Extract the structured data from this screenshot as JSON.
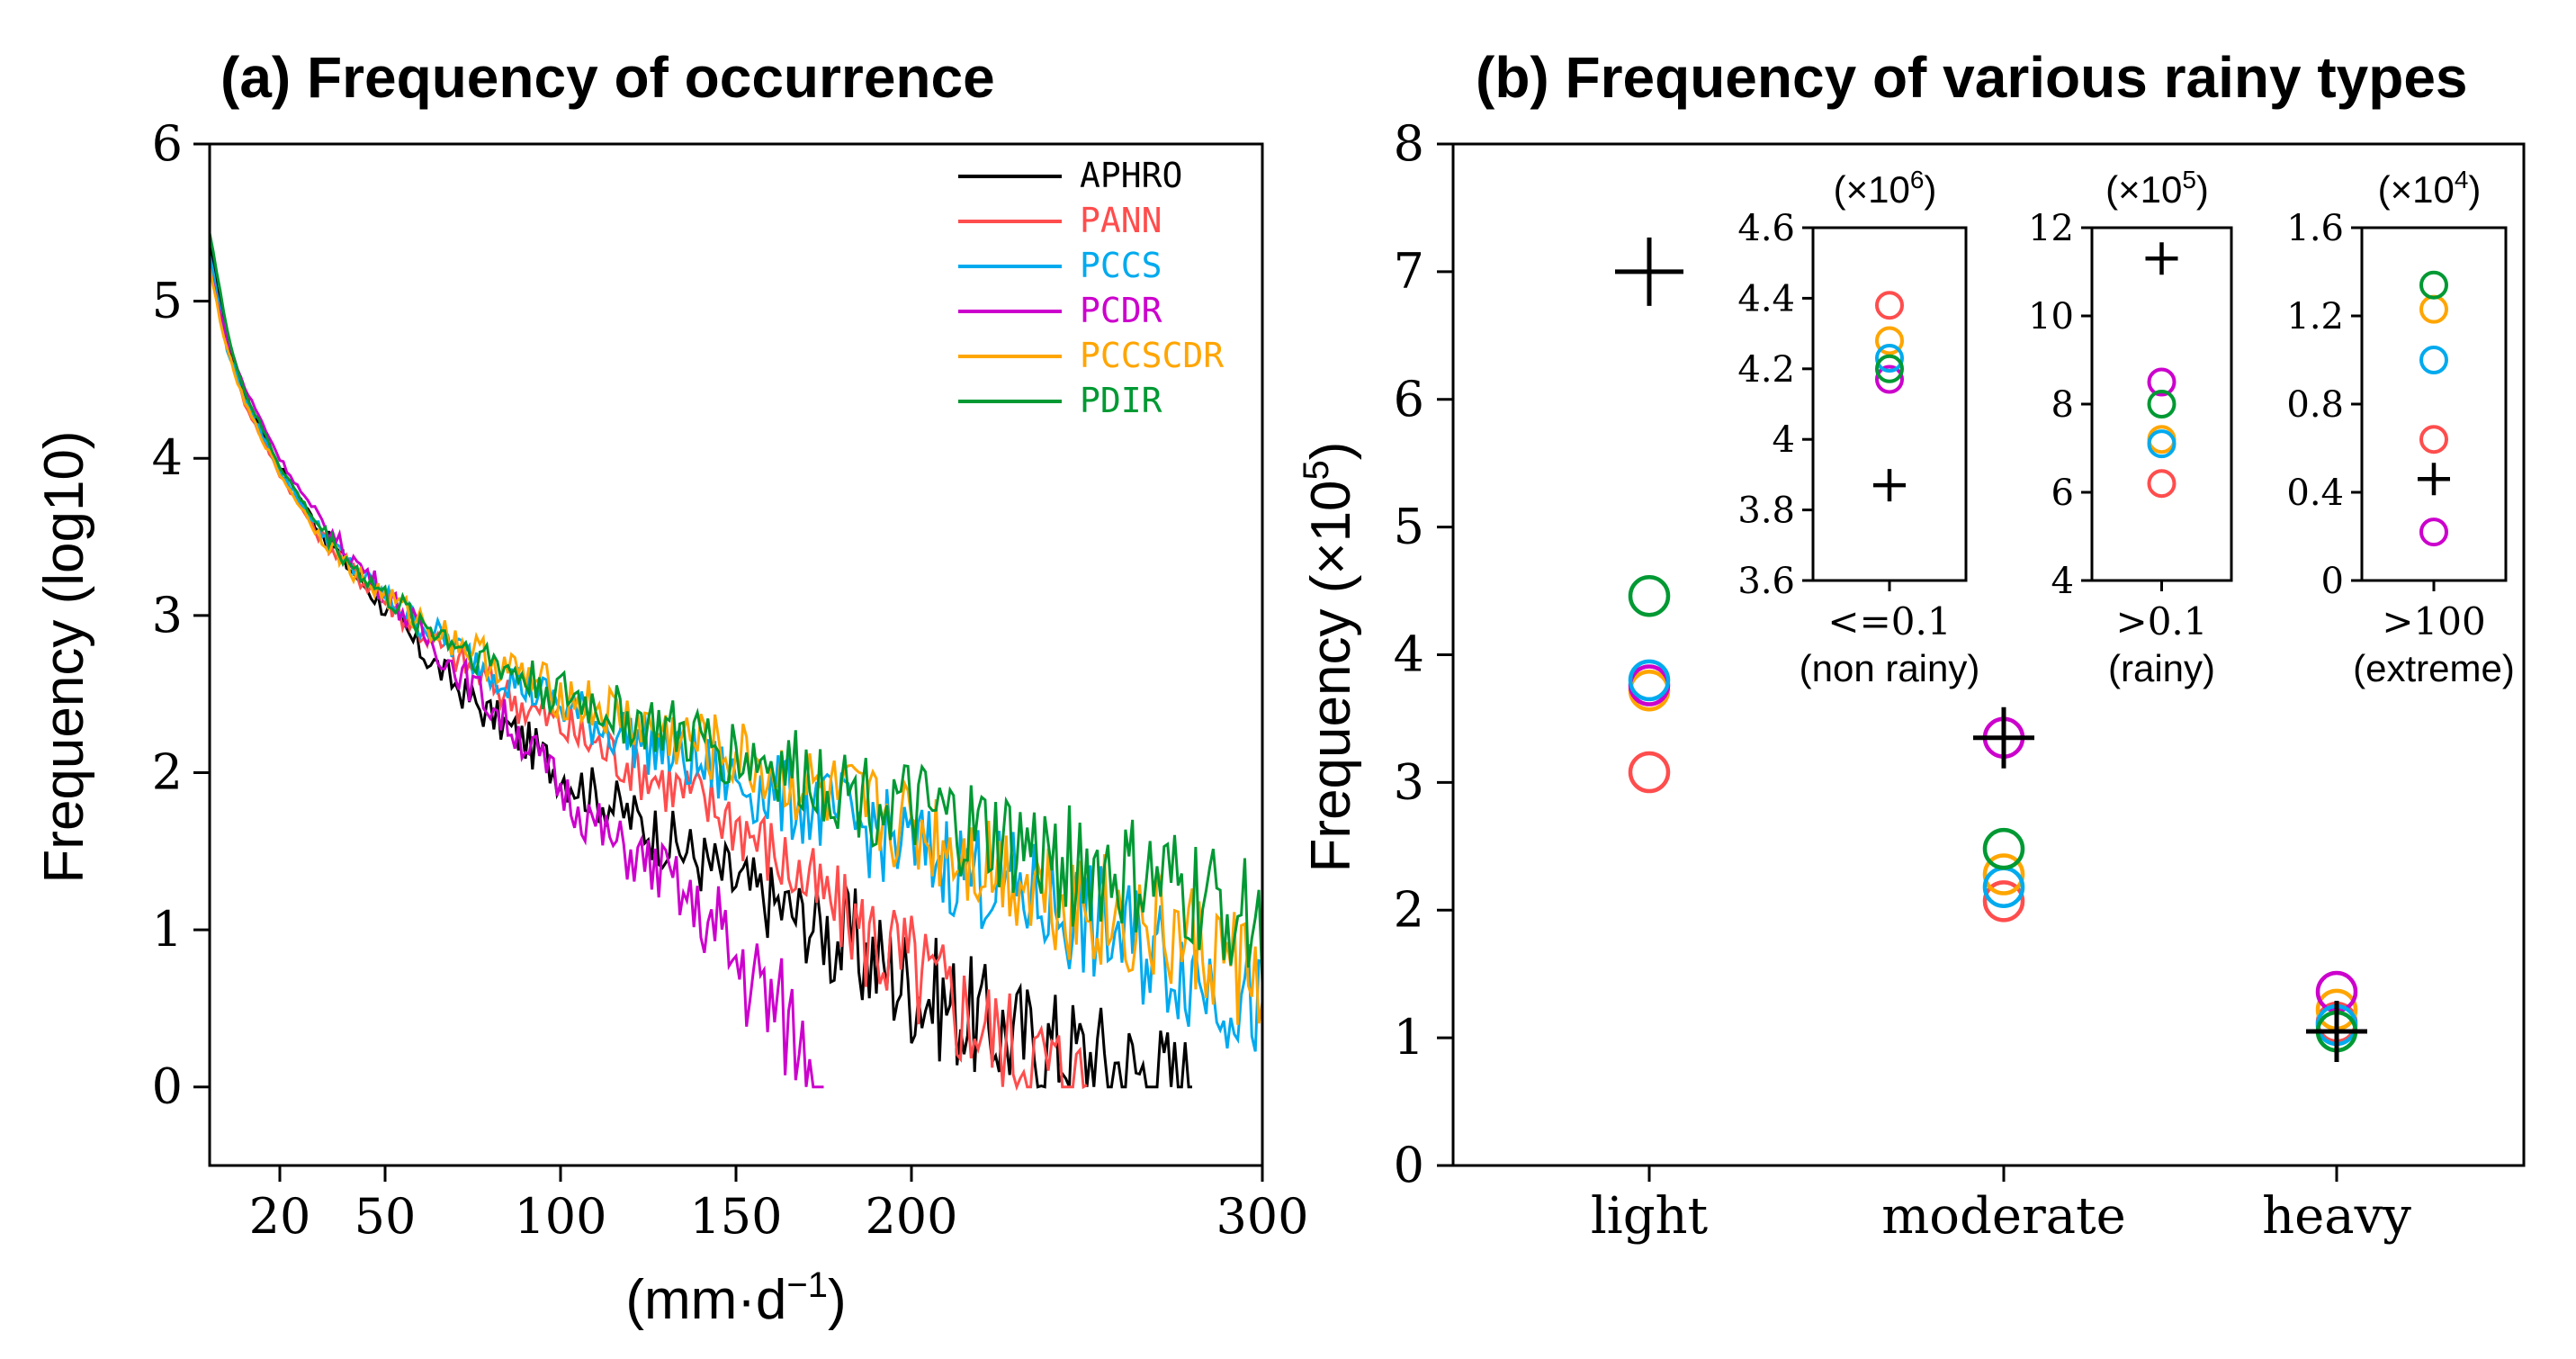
{
  "colors": {
    "APHRO": "#000000",
    "PANN": "#ff4d4d",
    "PCCS": "#00aaee",
    "PCDR": "#cc00cc",
    "PCCSCDR": "#ffa500",
    "PDIR": "#009933"
  },
  "panel_a": {
    "title": "(a) Frequency of occurrence",
    "ylabel": "Frequency (log10)",
    "xlabel_main": "(mm·d",
    "xlabel_sup": "−1",
    "xlabel_end": ")",
    "xticks": [
      "20",
      "50",
      "100",
      "150",
      "200",
      "300"
    ],
    "yticks": [
      "0",
      "1",
      "2",
      "3",
      "4",
      "5",
      "6"
    ],
    "legend": [
      "APHRO",
      "PANN",
      "PCCS",
      "PCDR",
      "PCCSCDR",
      "PDIR"
    ]
  },
  "panel_b": {
    "title": "(b) Frequency of various rainy types",
    "ylabel_main": "Frequency (×10",
    "ylabel_sup": "5",
    "ylabel_end": ")",
    "yticks": [
      "0",
      "1",
      "2",
      "3",
      "4",
      "5",
      "6",
      "7",
      "8"
    ],
    "categories": [
      "light",
      "moderate",
      "heavy"
    ],
    "insets": [
      {
        "scale_main": "(×10",
        "scale_sup": "6",
        "scale_end": ")",
        "yticks": [
          "3.6",
          "3.8",
          "4",
          "4.2",
          "4.4",
          "4.6"
        ],
        "label1": "<=0.1",
        "label2": "(non rainy)"
      },
      {
        "scale_main": "(×10",
        "scale_sup": "5",
        "scale_end": ")",
        "yticks": [
          "4",
          "6",
          "8",
          "10",
          "12"
        ],
        "label1": ">0.1",
        "label2": "(rainy)"
      },
      {
        "scale_main": "(×10",
        "scale_sup": "4",
        "scale_end": ")",
        "yticks": [
          "0",
          "0.4",
          "0.8",
          "1.2",
          "1.6"
        ],
        "label1": ">100",
        "label2": "(extreme)"
      }
    ]
  },
  "chart_data": [
    {
      "type": "line",
      "title": "(a) Frequency of occurrence",
      "xlabel": "(mm·d−1)",
      "ylabel": "Frequency (log10)",
      "xlim": [
        0,
        300
      ],
      "ylim": [
        -0.5,
        6
      ],
      "x_tick_values": [
        20,
        50,
        100,
        150,
        200,
        300
      ],
      "y_tick_values": [
        0,
        1,
        2,
        3,
        4,
        5,
        6
      ],
      "series": [
        {
          "name": "APHRO",
          "x": [
            0,
            5,
            10,
            20,
            30,
            40,
            50,
            60,
            75,
            90,
            100,
            125,
            150,
            175,
            200,
            225,
            250,
            280
          ],
          "y": [
            5.35,
            4.75,
            4.4,
            3.95,
            3.6,
            3.3,
            3.05,
            2.78,
            2.45,
            2.2,
            2.0,
            1.65,
            1.3,
            1.0,
            0.65,
            0.35,
            0.2,
            0.0
          ]
        },
        {
          "name": "PANN",
          "x": [
            0,
            5,
            10,
            20,
            30,
            40,
            50,
            60,
            75,
            90,
            100,
            125,
            150,
            175,
            200,
            225,
            250
          ],
          "y": [
            5.25,
            4.7,
            4.35,
            3.9,
            3.55,
            3.3,
            3.1,
            2.9,
            2.65,
            2.42,
            2.3,
            2.0,
            1.7,
            1.2,
            0.75,
            0.3,
            0.0
          ]
        },
        {
          "name": "PCCS",
          "x": [
            0,
            5,
            10,
            20,
            30,
            40,
            50,
            60,
            75,
            90,
            100,
            125,
            150,
            175,
            200,
            225,
            250,
            275,
            300
          ],
          "y": [
            5.3,
            4.7,
            4.38,
            3.92,
            3.58,
            3.32,
            3.12,
            2.95,
            2.72,
            2.55,
            2.42,
            2.18,
            1.95,
            1.75,
            1.52,
            1.3,
            1.05,
            0.8,
            0.5
          ]
        },
        {
          "name": "PCDR",
          "x": [
            0,
            5,
            10,
            20,
            30,
            40,
            50,
            60,
            75,
            90,
            100,
            115,
            130,
            150,
            165,
            175
          ],
          "y": [
            5.2,
            4.75,
            4.45,
            4.0,
            3.65,
            3.38,
            3.15,
            2.9,
            2.55,
            2.2,
            1.9,
            1.55,
            1.35,
            0.8,
            0.4,
            0.0
          ]
        },
        {
          "name": "PCCSCDR",
          "x": [
            0,
            5,
            10,
            20,
            30,
            40,
            50,
            60,
            75,
            90,
            100,
            125,
            150,
            175,
            200,
            225,
            250,
            275,
            300
          ],
          "y": [
            5.2,
            4.68,
            4.35,
            3.9,
            3.55,
            3.3,
            3.12,
            2.97,
            2.78,
            2.6,
            2.5,
            2.28,
            2.1,
            1.85,
            1.65,
            1.4,
            1.15,
            0.95,
            0.7
          ]
        },
        {
          "name": "PDIR",
          "x": [
            0,
            5,
            10,
            20,
            30,
            40,
            50,
            60,
            75,
            90,
            100,
            125,
            150,
            175,
            200,
            225,
            250,
            275,
            300
          ],
          "y": [
            5.45,
            4.8,
            4.42,
            3.95,
            3.6,
            3.33,
            3.12,
            2.96,
            2.77,
            2.6,
            2.5,
            2.3,
            2.12,
            1.95,
            1.75,
            1.55,
            1.38,
            1.25,
            1.05
          ]
        }
      ],
      "legend": "top-right"
    },
    {
      "type": "scatter",
      "title": "(b) Frequency of various rainy types",
      "ylabel": "Frequency (×10^5)",
      "categories": [
        "light",
        "moderate",
        "heavy"
      ],
      "ylim": [
        0,
        8
      ],
      "series": [
        {
          "name": "APHRO",
          "marker": "plus",
          "values": [
            7.0,
            3.35,
            1.05
          ]
        },
        {
          "name": "PANN",
          "marker": "circle",
          "values": [
            3.08,
            2.07,
            1.12
          ]
        },
        {
          "name": "PCCS",
          "marker": "circle",
          "values": [
            3.8,
            2.18,
            1.1
          ]
        },
        {
          "name": "PCDR",
          "marker": "circle",
          "values": [
            3.76,
            3.35,
            1.36
          ]
        },
        {
          "name": "PCCSCDR",
          "marker": "circle",
          "values": [
            3.72,
            2.28,
            1.22
          ]
        },
        {
          "name": "PDIR",
          "marker": "circle",
          "values": [
            4.46,
            2.48,
            1.05
          ]
        }
      ]
    },
    {
      "type": "scatter",
      "title": "<=0.1 (non rainy)",
      "ylabel": "(×10^6)",
      "ylim": [
        3.6,
        4.6
      ],
      "series": [
        {
          "name": "APHRO",
          "marker": "plus",
          "values": [
            3.87
          ]
        },
        {
          "name": "PANN",
          "marker": "circle",
          "values": [
            4.38
          ]
        },
        {
          "name": "PCCS",
          "marker": "circle",
          "values": [
            4.23
          ]
        },
        {
          "name": "PCDR",
          "marker": "circle",
          "values": [
            4.17
          ]
        },
        {
          "name": "PCCSCDR",
          "marker": "circle",
          "values": [
            4.28
          ]
        },
        {
          "name": "PDIR",
          "marker": "circle",
          "values": [
            4.2
          ]
        }
      ]
    },
    {
      "type": "scatter",
      "title": ">0.1 (rainy)",
      "ylabel": "(×10^5)",
      "ylim": [
        4,
        12
      ],
      "series": [
        {
          "name": "APHRO",
          "marker": "plus",
          "values": [
            11.3
          ]
        },
        {
          "name": "PANN",
          "marker": "circle",
          "values": [
            6.2
          ]
        },
        {
          "name": "PCCS",
          "marker": "circle",
          "values": [
            7.1
          ]
        },
        {
          "name": "PCDR",
          "marker": "circle",
          "values": [
            8.5
          ]
        },
        {
          "name": "PCCSCDR",
          "marker": "circle",
          "values": [
            7.2
          ]
        },
        {
          "name": "PDIR",
          "marker": "circle",
          "values": [
            8.0
          ]
        }
      ]
    },
    {
      "type": "scatter",
      "title": ">100 (extreme)",
      "ylabel": "(×10^4)",
      "ylim": [
        0,
        1.6
      ],
      "series": [
        {
          "name": "APHRO",
          "marker": "plus",
          "values": [
            0.46
          ]
        },
        {
          "name": "PANN",
          "marker": "circle",
          "values": [
            0.64
          ]
        },
        {
          "name": "PCCS",
          "marker": "circle",
          "values": [
            1.0
          ]
        },
        {
          "name": "PCDR",
          "marker": "circle",
          "values": [
            0.22
          ]
        },
        {
          "name": "PCCSCDR",
          "marker": "circle",
          "values": [
            1.23
          ]
        },
        {
          "name": "PDIR",
          "marker": "circle",
          "values": [
            1.34
          ]
        }
      ]
    }
  ]
}
